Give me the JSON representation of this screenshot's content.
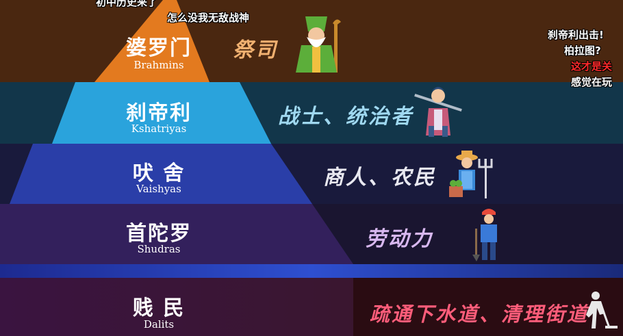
{
  "tiers": [
    {
      "title": "婆罗门",
      "subtitle": "Brahmins",
      "role": "祭司",
      "role_color": "#f0b070"
    },
    {
      "title": "刹帝利",
      "subtitle": "Kshatriyas",
      "role": "战士、统治者",
      "role_color": "#9fd8f0"
    },
    {
      "title": "吠 舍",
      "subtitle": "Vaishyas",
      "role": "商人、农民",
      "role_color": "#e8e8f0"
    },
    {
      "title": "首陀罗",
      "subtitle": "Shudras",
      "role": "劳动力",
      "role_color": "#d8b8f0"
    },
    {
      "title": "贱 民",
      "subtitle": "Dalits",
      "role": "疏通下水道、清理街道",
      "role_color": "#ff5d7a"
    }
  ],
  "danmaku": {
    "c1": "初中历史来了",
    "c2": "怎么没我无敌战神",
    "c3": "刹帝利出击!",
    "c4": "柏拉图?",
    "c5": "这才是关",
    "c6": "感觉在玩"
  },
  "colors": {
    "brahmin": "#e37a1f",
    "kshatriya": "#2aa3dc",
    "vaishya": "#2a3ea8",
    "shudra": "#33205c"
  },
  "icons": [
    "priest-icon",
    "warrior-icon",
    "farmer-icon",
    "worker-icon",
    "sweeper-icon"
  ]
}
